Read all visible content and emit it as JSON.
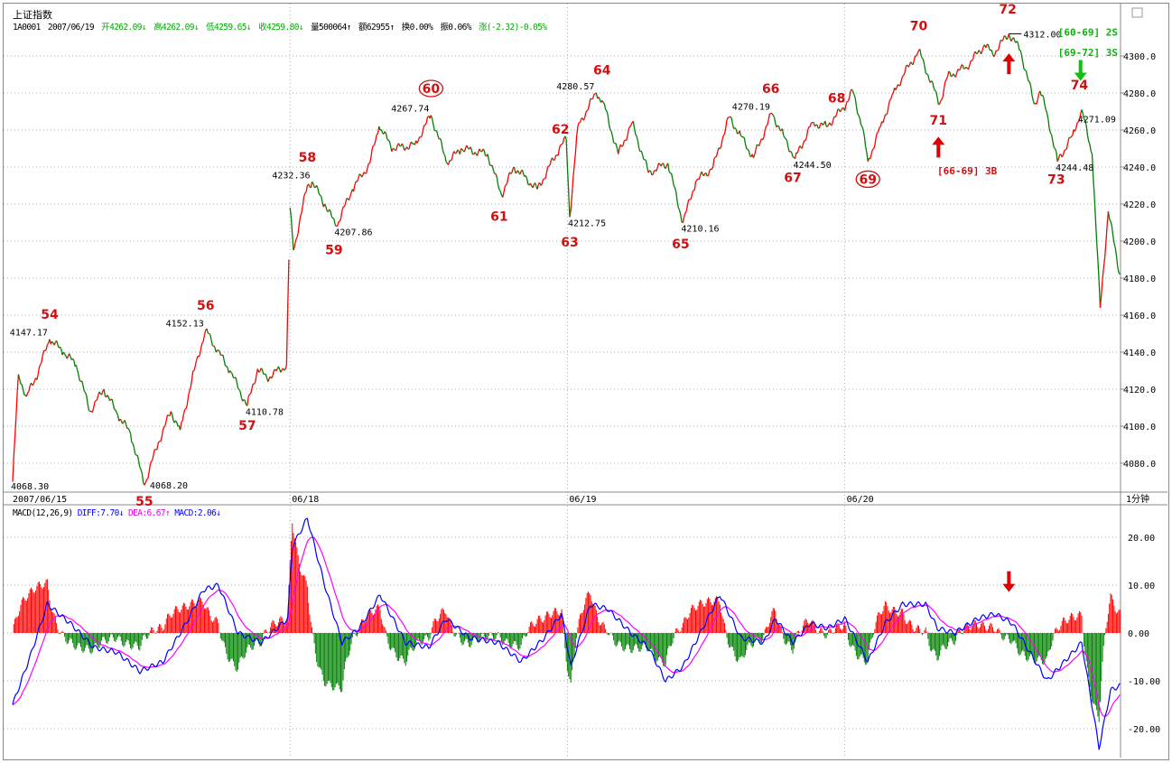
{
  "header": {
    "title": "上证指数",
    "code": "1A0001",
    "date": "2007/06/19",
    "open": "开4262.09↓",
    "high": "高4262.09↓",
    "low": "低4259.65↓",
    "close": "收4259.80↓",
    "volume": "量500064↑",
    "amount": "额62955↑",
    "turnover": "换0.00%",
    "amplitude": "振0.06%",
    "change": "涨(-2.32)-0.05%"
  },
  "macd_header": {
    "name": "MACD(12,26,9)",
    "diff": "DIFF:7.70↓",
    "dea": "DEA:6.67↑",
    "macd": "MACD:2.06↓"
  },
  "period_label": "1分钟",
  "colors": {
    "up": "#ff0000",
    "down": "#008000",
    "diff": "#0000ff",
    "dea": "#ff00ff",
    "wave_label": "#d01010",
    "green_label": "#10b010"
  },
  "chart_data": {
    "type": "line",
    "title": "上证指数 1分钟",
    "x_unit": "minute index (240 per session)",
    "x_labels": [
      {
        "i": 0,
        "text": "2007/06/15"
      },
      {
        "i": 240,
        "text": "06/18"
      },
      {
        "i": 480,
        "text": "06/19"
      },
      {
        "i": 720,
        "text": "06/20"
      }
    ],
    "price_ylim": [
      4060,
      4320
    ],
    "price_ticks": [
      "4300.0",
      "4280.0",
      "4260.0",
      "4240.0",
      "4220.0",
      "4200.0",
      "4180.0",
      "4160.0",
      "4140.0",
      "4120.0",
      "4100.0",
      "4080.0"
    ],
    "price": [
      [
        0,
        4070
      ],
      [
        5,
        4128
      ],
      [
        12,
        4116
      ],
      [
        20,
        4126
      ],
      [
        32,
        4147
      ],
      [
        44,
        4140
      ],
      [
        55,
        4133
      ],
      [
        67,
        4108
      ],
      [
        79,
        4120
      ],
      [
        91,
        4106
      ],
      [
        102,
        4096
      ],
      [
        114,
        4068.2
      ],
      [
        126,
        4091
      ],
      [
        137,
        4108
      ],
      [
        145,
        4098
      ],
      [
        157,
        4130
      ],
      [
        167,
        4152
      ],
      [
        177,
        4141
      ],
      [
        188,
        4130
      ],
      [
        203,
        4111
      ],
      [
        212,
        4131
      ],
      [
        220,
        4126
      ],
      [
        237,
        4133
      ],
      [
        240,
        4218
      ],
      [
        243,
        4195
      ],
      [
        255,
        4230
      ],
      [
        259,
        4232
      ],
      [
        270,
        4220
      ],
      [
        280,
        4208
      ],
      [
        294,
        4228
      ],
      [
        309,
        4242
      ],
      [
        317,
        4262
      ],
      [
        329,
        4250
      ],
      [
        348,
        4252
      ],
      [
        362,
        4268
      ],
      [
        376,
        4242
      ],
      [
        388,
        4250
      ],
      [
        411,
        4247
      ],
      [
        423,
        4225
      ],
      [
        434,
        4240
      ],
      [
        454,
        4228
      ],
      [
        473,
        4250
      ],
      [
        479,
        4255
      ],
      [
        482,
        4213
      ],
      [
        489,
        4262
      ],
      [
        505,
        4280
      ],
      [
        511,
        4275
      ],
      [
        524,
        4247
      ],
      [
        536,
        4264
      ],
      [
        550,
        4237
      ],
      [
        567,
        4242
      ],
      [
        580,
        4210
      ],
      [
        591,
        4232
      ],
      [
        606,
        4240
      ],
      [
        620,
        4267
      ],
      [
        630,
        4257
      ],
      [
        641,
        4245
      ],
      [
        657,
        4269
      ],
      [
        667,
        4257
      ],
      [
        677,
        4244.5
      ],
      [
        692,
        4264
      ],
      [
        704,
        4262
      ],
      [
        719,
        4272
      ],
      [
        727,
        4281
      ],
      [
        735,
        4262
      ],
      [
        740,
        4243
      ],
      [
        751,
        4262
      ],
      [
        762,
        4280
      ],
      [
        770,
        4289
      ],
      [
        784,
        4303
      ],
      [
        802,
        4274
      ],
      [
        809,
        4289
      ],
      [
        825,
        4294
      ],
      [
        841,
        4306
      ],
      [
        848,
        4301
      ],
      [
        862,
        4312
      ],
      [
        872,
        4303
      ],
      [
        884,
        4274
      ],
      [
        889,
        4281
      ],
      [
        895,
        4269
      ],
      [
        904,
        4243
      ],
      [
        917,
        4257
      ],
      [
        925,
        4271
      ],
      [
        934,
        4247
      ],
      [
        941,
        4164
      ],
      [
        948,
        4216
      ],
      [
        958,
        4182
      ]
    ],
    "price_labels": [
      {
        "i": 0,
        "p": 4068.3,
        "text": "4068.30",
        "pos": "below"
      },
      {
        "i": 32,
        "p": 4147,
        "text": "4147.17",
        "pos": "left"
      },
      {
        "i": 114,
        "p": 4068.2,
        "text": "4068.20",
        "pos": "right"
      },
      {
        "i": 167,
        "p": 4152,
        "text": "4152.13",
        "pos": "left"
      },
      {
        "i": 203,
        "p": 4111,
        "text": "4110.78",
        "pos": "below"
      },
      {
        "i": 259,
        "p": 4232,
        "text": "4232.36",
        "pos": "left"
      },
      {
        "i": 280,
        "p": 4208,
        "text": "4207.86",
        "pos": "below"
      },
      {
        "i": 362,
        "p": 4268,
        "text": "4267.74",
        "pos": "left"
      },
      {
        "i": 482,
        "p": 4213,
        "text": "4212.75",
        "pos": "below"
      },
      {
        "i": 505,
        "p": 4280,
        "text": "4280.57",
        "pos": "left"
      },
      {
        "i": 580,
        "p": 4210,
        "text": "4210.16",
        "pos": "below"
      },
      {
        "i": 657,
        "p": 4269,
        "text": "4270.19",
        "pos": "left"
      },
      {
        "i": 677,
        "p": 4244.5,
        "text": "4244.50",
        "pos": "below"
      },
      {
        "i": 862,
        "p": 4312,
        "text": "4312.00",
        "pos": "right"
      },
      {
        "i": 904,
        "p": 4243,
        "text": "4244.48",
        "pos": "below"
      },
      {
        "i": 917,
        "p": 4266,
        "text": "4271.09",
        "pos": "right"
      }
    ],
    "wave_labels": [
      {
        "i": 32,
        "p": 4158,
        "text": "54"
      },
      {
        "i": 114,
        "p": 4057,
        "text": "55"
      },
      {
        "i": 167,
        "p": 4163,
        "text": "56"
      },
      {
        "i": 203,
        "p": 4098,
        "text": "57"
      },
      {
        "i": 255,
        "p": 4243,
        "text": "58"
      },
      {
        "i": 278,
        "p": 4193,
        "text": "59"
      },
      {
        "i": 362,
        "p": 4280,
        "text": "60",
        "circled": true
      },
      {
        "i": 421,
        "p": 4211,
        "text": "61"
      },
      {
        "i": 474,
        "p": 4258,
        "text": "62"
      },
      {
        "i": 482,
        "p": 4197,
        "text": "63"
      },
      {
        "i": 510,
        "p": 4290,
        "text": "64"
      },
      {
        "i": 578,
        "p": 4196,
        "text": "65"
      },
      {
        "i": 656,
        "p": 4280,
        "text": "66"
      },
      {
        "i": 675,
        "p": 4232,
        "text": "67"
      },
      {
        "i": 713,
        "p": 4275,
        "text": "68"
      },
      {
        "i": 740,
        "p": 4231,
        "text": "69",
        "circled": true
      },
      {
        "i": 784,
        "p": 4314,
        "text": "70"
      },
      {
        "i": 801,
        "p": 4263,
        "text": "71"
      },
      {
        "i": 861,
        "p": 4323,
        "text": "72"
      },
      {
        "i": 903,
        "p": 4231,
        "text": "73"
      },
      {
        "i": 923,
        "p": 4282,
        "text": "74"
      }
    ],
    "notes": [
      {
        "i": 800,
        "p": 4236,
        "text": "[66-69] 3B",
        "color": "red"
      },
      {
        "i": 935,
        "p": 4311,
        "text": "[60-69] 2S",
        "color": "green"
      },
      {
        "i": 935,
        "p": 4300,
        "text": "[69-72] 3S",
        "color": "green"
      }
    ],
    "arrows": [
      {
        "i": 801,
        "p": 4252,
        "dir": "up",
        "color": "red"
      },
      {
        "i": 862,
        "p": 4297,
        "dir": "up",
        "color": "red"
      },
      {
        "i": 924,
        "p": 4291,
        "dir": "down",
        "color": "green"
      },
      {
        "i": 862,
        "macd": 8,
        "dir": "down",
        "color": "red"
      }
    ],
    "macd_ylim": [
      -26,
      27
    ],
    "macd_ticks": [
      "20.00",
      "10.00",
      "0.00",
      "-10.00",
      "-20.00"
    ],
    "diff": [
      [
        0,
        -15
      ],
      [
        15,
        -5
      ],
      [
        30,
        6
      ],
      [
        50,
        2
      ],
      [
        70,
        -3
      ],
      [
        90,
        -4
      ],
      [
        110,
        -8
      ],
      [
        130,
        -6
      ],
      [
        150,
        2
      ],
      [
        165,
        9
      ],
      [
        178,
        10
      ],
      [
        195,
        0
      ],
      [
        215,
        -2
      ],
      [
        238,
        3
      ],
      [
        242,
        18
      ],
      [
        255,
        24
      ],
      [
        270,
        10
      ],
      [
        285,
        -2
      ],
      [
        300,
        1
      ],
      [
        318,
        8
      ],
      [
        340,
        -2
      ],
      [
        360,
        -3
      ],
      [
        375,
        3
      ],
      [
        395,
        -1
      ],
      [
        420,
        -2
      ],
      [
        440,
        -6
      ],
      [
        460,
        -1
      ],
      [
        475,
        4
      ],
      [
        483,
        -7
      ],
      [
        500,
        6
      ],
      [
        515,
        5
      ],
      [
        535,
        0
      ],
      [
        550,
        -3
      ],
      [
        565,
        -10
      ],
      [
        580,
        -7
      ],
      [
        595,
        0
      ],
      [
        612,
        8
      ],
      [
        630,
        -1
      ],
      [
        650,
        -2
      ],
      [
        660,
        3
      ],
      [
        675,
        -2
      ],
      [
        690,
        2
      ],
      [
        705,
        1
      ],
      [
        720,
        3
      ],
      [
        740,
        -6
      ],
      [
        755,
        2
      ],
      [
        770,
        6
      ],
      [
        790,
        6
      ],
      [
        800,
        1
      ],
      [
        815,
        0
      ],
      [
        835,
        3
      ],
      [
        850,
        4
      ],
      [
        865,
        2
      ],
      [
        880,
        -4
      ],
      [
        895,
        -10
      ],
      [
        910,
        -6
      ],
      [
        925,
        -2
      ],
      [
        940,
        -24
      ],
      [
        950,
        -12
      ],
      [
        958,
        -11
      ]
    ]
  }
}
